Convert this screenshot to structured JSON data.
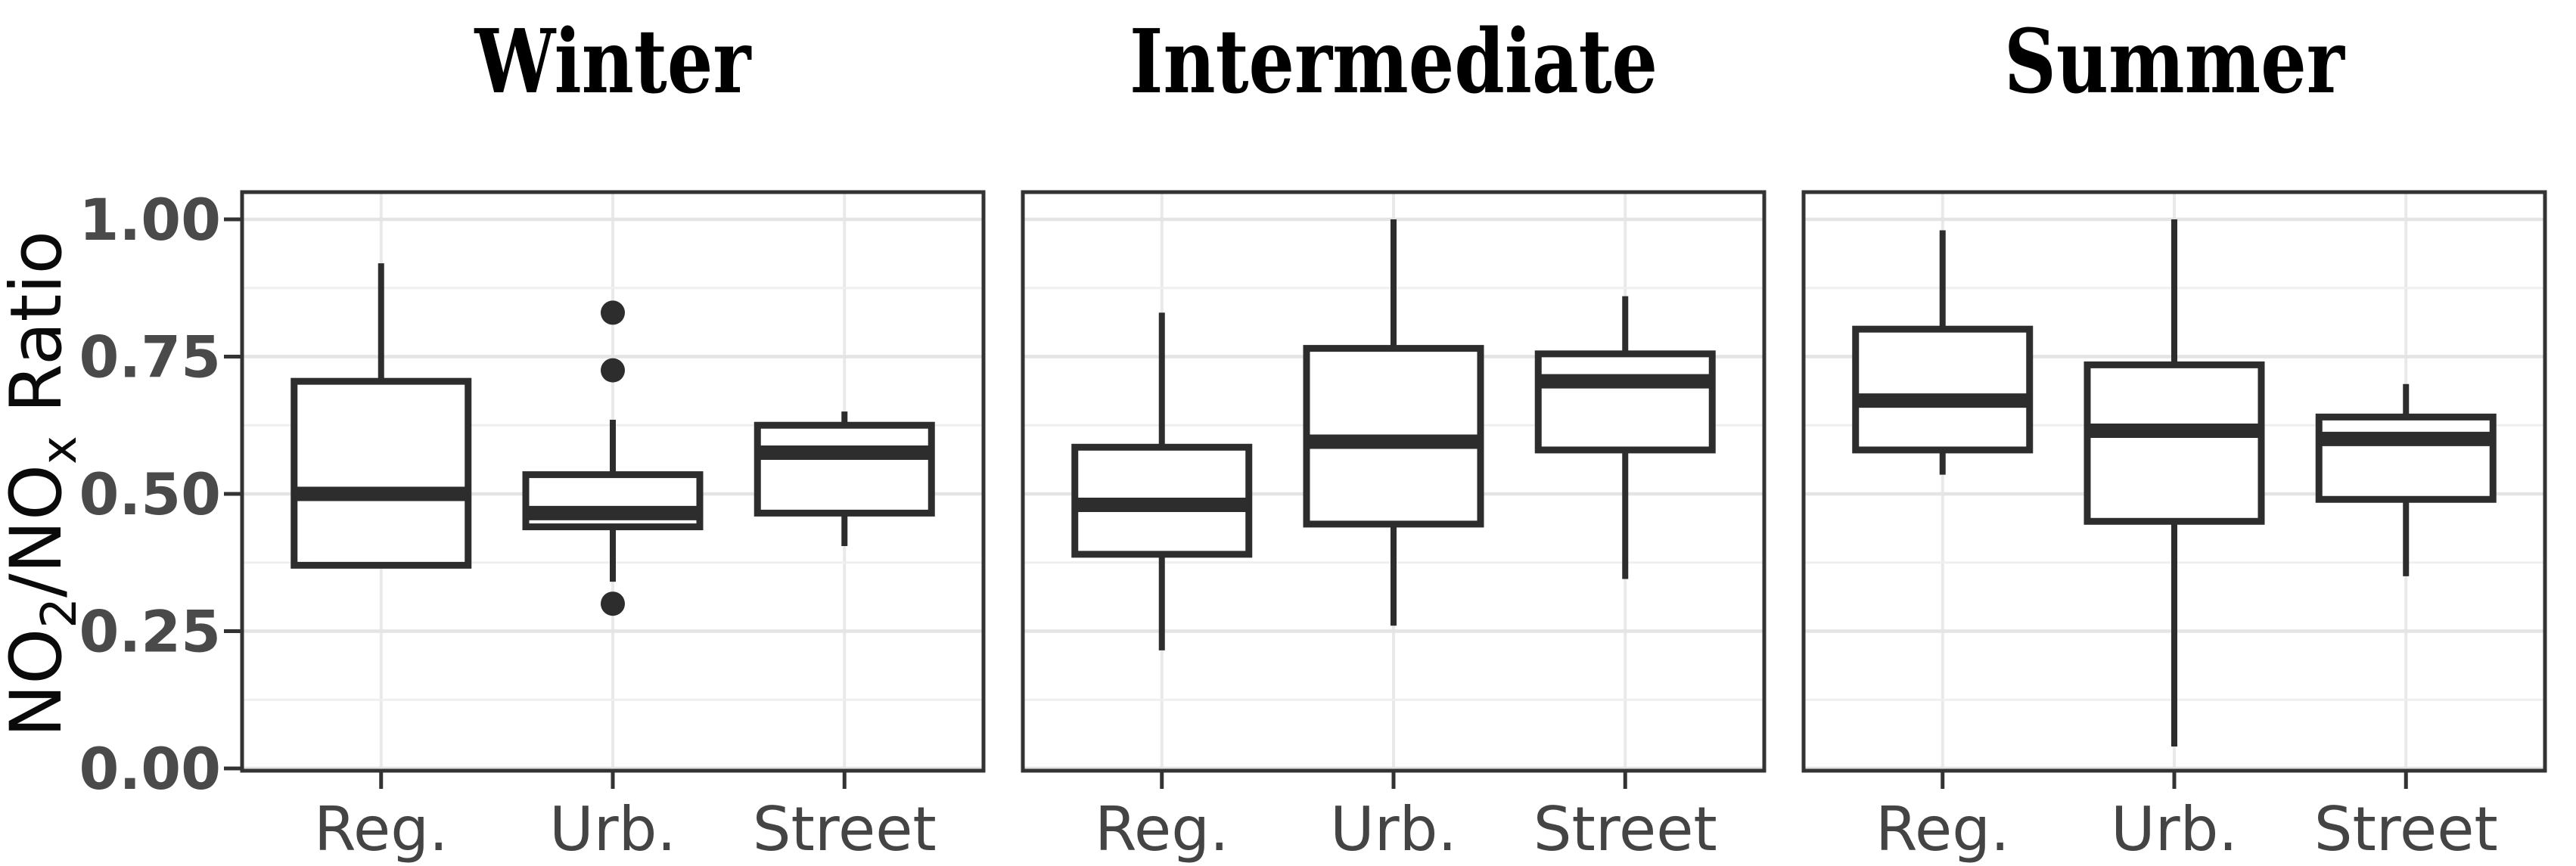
{
  "figure": {
    "y_axis_title_plain": "NO2/NOx Ratio",
    "y_axis_title_parts": [
      {
        "text": "NO",
        "sub": false
      },
      {
        "text": "2",
        "sub": true
      },
      {
        "text": "/NO",
        "sub": false
      },
      {
        "text": "x",
        "sub": true
      },
      {
        "text": " Ratio",
        "sub": false
      }
    ]
  },
  "chart_data": {
    "type": "boxplot",
    "grid": true,
    "ylabel": "NO2/NOx Ratio",
    "ylim": [
      0.0,
      1.05
    ],
    "yticks": [
      1.0,
      0.75,
      0.5,
      0.25,
      0.0
    ],
    "ytick_labels": [
      "1.00",
      "0.75",
      "0.50",
      "0.25",
      "0.00"
    ],
    "minor_gridlines": [
      0.875,
      0.625,
      0.375,
      0.125
    ],
    "categories": [
      "Reg.",
      "Urb.",
      "Street"
    ],
    "panels": [
      {
        "title": "Winter",
        "boxes": [
          {
            "category": "Reg.",
            "whisker_low": 0.37,
            "q1": 0.37,
            "median": 0.5,
            "q3": 0.705,
            "whisker_high": 0.92,
            "outliers": []
          },
          {
            "category": "Urb.",
            "whisker_low": 0.34,
            "q1": 0.44,
            "median": 0.465,
            "q3": 0.535,
            "whisker_high": 0.635,
            "outliers": [
              0.83,
              0.725,
              0.3
            ]
          },
          {
            "category": "Street",
            "whisker_low": 0.405,
            "q1": 0.465,
            "median": 0.575,
            "q3": 0.625,
            "whisker_high": 0.65,
            "outliers": []
          }
        ]
      },
      {
        "title": "Intermediate",
        "boxes": [
          {
            "category": "Reg.",
            "whisker_low": 0.215,
            "q1": 0.39,
            "median": 0.48,
            "q3": 0.585,
            "whisker_high": 0.83,
            "outliers": []
          },
          {
            "category": "Urb.",
            "whisker_low": 0.26,
            "q1": 0.445,
            "median": 0.595,
            "q3": 0.765,
            "whisker_high": 1.0,
            "outliers": []
          },
          {
            "category": "Street",
            "whisker_low": 0.345,
            "q1": 0.58,
            "median": 0.705,
            "q3": 0.755,
            "whisker_high": 0.86,
            "outliers": []
          }
        ]
      },
      {
        "title": "Summer",
        "boxes": [
          {
            "category": "Reg.",
            "whisker_low": 0.535,
            "q1": 0.58,
            "median": 0.67,
            "q3": 0.8,
            "whisker_high": 0.98,
            "outliers": []
          },
          {
            "category": "Urb.",
            "whisker_low": 0.04,
            "q1": 0.45,
            "median": 0.615,
            "q3": 0.735,
            "whisker_high": 1.0,
            "outliers": []
          },
          {
            "category": "Street",
            "whisker_low": 0.35,
            "q1": 0.49,
            "median": 0.6,
            "q3": 0.64,
            "whisker_high": 0.7,
            "outliers": []
          }
        ]
      }
    ]
  },
  "style": {
    "box_stroke": "#2d2d2d",
    "box_fill": "#ffffff",
    "panel_border": "#333333",
    "panel_bg": "#ffffff",
    "grid_major": "#e4e4e4",
    "grid_minor": "#efefef",
    "grid_vertical": "#e9e9e9",
    "tick_color": "#333333",
    "ytick_label_color": "#4a4a4a",
    "xtick_label_color": "#444444",
    "title_color": "#000000",
    "axis_title_color": "#0a0a0a"
  }
}
